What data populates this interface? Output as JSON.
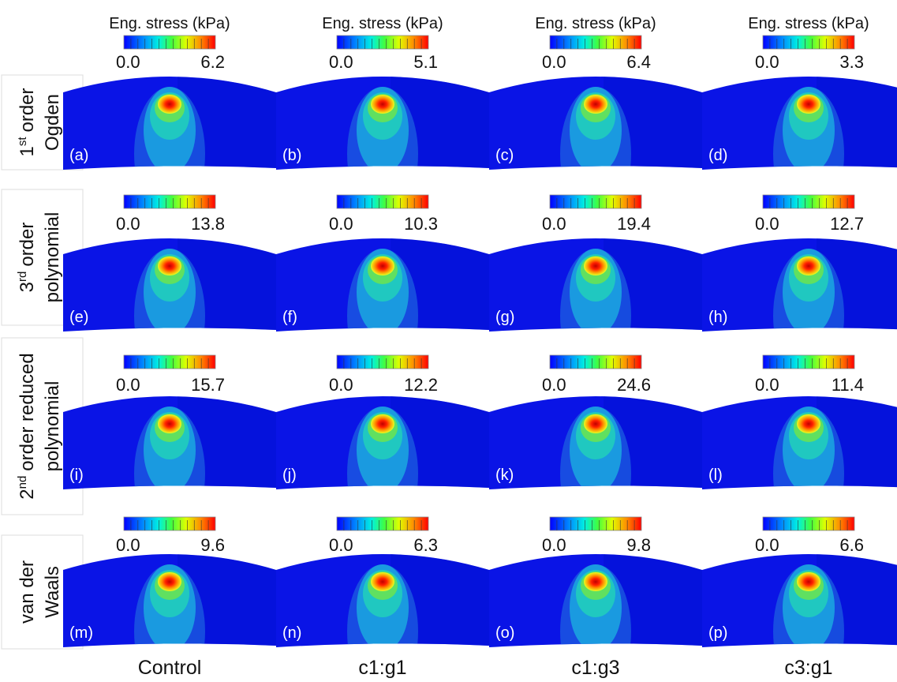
{
  "colorbar_title": "Eng. stress (kPa)",
  "columns": [
    "Control",
    "c1:g1",
    "c1:g3",
    "c3:g1"
  ],
  "rows": [
    {
      "label": {
        "number": "1",
        "superscript": "st",
        "line1": "order",
        "line2": "Ogden"
      },
      "panels": [
        {
          "letter": "(a)",
          "scale_min": "0.0",
          "scale_max": "6.2"
        },
        {
          "letter": "(b)",
          "scale_min": "0.0",
          "scale_max": "5.1"
        },
        {
          "letter": "(c)",
          "scale_min": "0.0",
          "scale_max": "6.4"
        },
        {
          "letter": "(d)",
          "scale_min": "0.0",
          "scale_max": "3.3"
        }
      ]
    },
    {
      "label": {
        "number": "3",
        "superscript": "rd",
        "line1": "order",
        "line2": "polynomial"
      },
      "panels": [
        {
          "letter": "(e)",
          "scale_min": "0.0",
          "scale_max": "13.8"
        },
        {
          "letter": "(f)",
          "scale_min": "0.0",
          "scale_max": "10.3"
        },
        {
          "letter": "(g)",
          "scale_min": "0.0",
          "scale_max": "19.4"
        },
        {
          "letter": "(h)",
          "scale_min": "0.0",
          "scale_max": "12.7"
        }
      ]
    },
    {
      "label": {
        "number": "2",
        "superscript": "nd",
        "line1": "order reduced",
        "line2": "polynomial"
      },
      "panels": [
        {
          "letter": "(i)",
          "scale_min": "0.0",
          "scale_max": "15.7"
        },
        {
          "letter": "(j)",
          "scale_min": "0.0",
          "scale_max": "12.2"
        },
        {
          "letter": "(k)",
          "scale_min": "0.0",
          "scale_max": "24.6"
        },
        {
          "letter": "(l)",
          "scale_min": "0.0",
          "scale_max": "11.4"
        }
      ]
    },
    {
      "label": {
        "line1": "van der",
        "line2": "Waals"
      },
      "panels": [
        {
          "letter": "(m)",
          "scale_min": "0.0",
          "scale_max": "9.6"
        },
        {
          "letter": "(n)",
          "scale_min": "0.0",
          "scale_max": "6.3"
        },
        {
          "letter": "(o)",
          "scale_min": "0.0",
          "scale_max": "9.8"
        },
        {
          "letter": "(p)",
          "scale_min": "0.0",
          "scale_max": "6.6"
        }
      ]
    }
  ]
}
